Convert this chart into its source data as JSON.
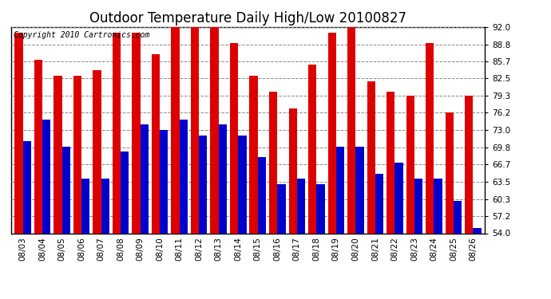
{
  "title": "Outdoor Temperature Daily High/Low 20100827",
  "copyright": "Copyright 2010 Cartronics.com",
  "dates": [
    "08/03",
    "08/04",
    "08/05",
    "08/06",
    "08/07",
    "08/08",
    "08/09",
    "08/10",
    "08/11",
    "08/12",
    "08/13",
    "08/14",
    "08/15",
    "08/16",
    "08/17",
    "08/18",
    "08/19",
    "08/20",
    "08/21",
    "08/22",
    "08/23",
    "08/24",
    "08/25",
    "08/26"
  ],
  "highs": [
    91.0,
    86.0,
    83.0,
    83.0,
    84.0,
    91.0,
    91.0,
    87.0,
    92.0,
    92.0,
    93.0,
    89.0,
    83.0,
    80.0,
    77.0,
    85.0,
    91.0,
    93.0,
    82.0,
    80.0,
    79.3,
    89.0,
    76.2,
    79.3
  ],
  "lows": [
    71.0,
    75.0,
    70.0,
    64.0,
    64.0,
    69.0,
    74.0,
    73.0,
    75.0,
    72.0,
    74.0,
    72.0,
    68.0,
    63.0,
    64.0,
    63.0,
    70.0,
    70.0,
    65.0,
    67.0,
    64.0,
    64.0,
    60.0,
    55.0
  ],
  "high_color": "#dd0000",
  "low_color": "#0000cc",
  "bg_color": "#ffffff",
  "grid_color": "#888888",
  "ymin": 54.0,
  "ymax": 92.0,
  "yticks": [
    54.0,
    57.2,
    60.3,
    63.5,
    66.7,
    69.8,
    73.0,
    76.2,
    79.3,
    82.5,
    85.7,
    88.8,
    92.0
  ],
  "bar_width": 0.42,
  "title_fontsize": 12,
  "tick_fontsize": 7.5,
  "copyright_fontsize": 7
}
